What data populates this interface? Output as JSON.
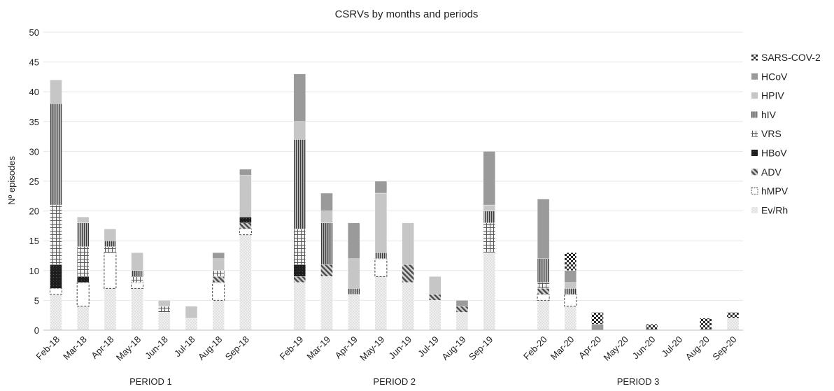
{
  "chart_data": {
    "type": "bar",
    "stacked": true,
    "title": "CSRVs by months and periods",
    "xlabel": "",
    "ylabel": "Nº episodes",
    "ylim": [
      0,
      50
    ],
    "yticks": [
      0,
      5,
      10,
      15,
      20,
      25,
      30,
      35,
      40,
      45,
      50
    ],
    "grid": true,
    "legend_position": "right",
    "periods": [
      {
        "label": "PERIOD 1",
        "categories": [
          "Feb-18",
          "Mar-18",
          "Apr-18",
          "May-18",
          "Jun-18",
          "Jul-18",
          "Aug-18",
          "Sep-18"
        ]
      },
      {
        "label": "PERIOD 2",
        "categories": [
          "Feb-19",
          "Mar-19",
          "Apr-19",
          "May-19",
          "Jun-19",
          "Jul-19",
          "Aug-19",
          "Sep-19"
        ]
      },
      {
        "label": "PERIOD 3",
        "categories": [
          "Feb-20",
          "Mar-20",
          "Apr-20",
          "May-20",
          "Jun-20",
          "Jul-20",
          "Aug-20",
          "Sep-20"
        ]
      }
    ],
    "categories": [
      "Feb-18",
      "Mar-18",
      "Apr-18",
      "May-18",
      "Jun-18",
      "Jul-18",
      "Aug-18",
      "Sep-18",
      "Feb-19",
      "Mar-19",
      "Apr-19",
      "May-19",
      "Jun-19",
      "Jul-19",
      "Aug-19",
      "Sep-19",
      "Feb-20",
      "Mar-20",
      "Apr-20",
      "May-20",
      "Jun-20",
      "Jul-20",
      "Aug-20",
      "Sep-20"
    ],
    "series": [
      {
        "name": "Ev/Rh",
        "pattern": "dots",
        "values": [
          6,
          4,
          7,
          7,
          3,
          2,
          5,
          16,
          8,
          9,
          6,
          9,
          8,
          5,
          3,
          13,
          5,
          4,
          0,
          0,
          0,
          0,
          0,
          2
        ]
      },
      {
        "name": "hMPV",
        "pattern": "dashed",
        "values": [
          1,
          4,
          6,
          1,
          0,
          0,
          3,
          1,
          0,
          0,
          0,
          3,
          0,
          0,
          0,
          0,
          1,
          2,
          0,
          0,
          0,
          0,
          0,
          0
        ]
      },
      {
        "name": "ADV",
        "pattern": "diag",
        "values": [
          0,
          0,
          0,
          0,
          0,
          0,
          1,
          1,
          1,
          2,
          0,
          0,
          3,
          1,
          1,
          0,
          1,
          0,
          0,
          0,
          0,
          0,
          0,
          0
        ]
      },
      {
        "name": "HBoV",
        "pattern": "dark",
        "values": [
          4,
          1,
          0,
          0,
          0,
          0,
          0,
          1,
          2,
          0,
          0,
          0,
          0,
          0,
          0,
          0,
          0,
          0,
          0,
          0,
          0,
          0,
          0,
          0
        ]
      },
      {
        "name": "VRS",
        "pattern": "grid",
        "values": [
          10,
          5,
          1,
          1,
          1,
          0,
          1,
          0,
          6,
          0,
          0,
          0,
          0,
          0,
          0,
          5,
          1,
          0,
          0,
          0,
          0,
          0,
          0,
          0
        ]
      },
      {
        "name": "hIV",
        "pattern": "vlines",
        "values": [
          17,
          4,
          1,
          1,
          0,
          0,
          0,
          0,
          15,
          7,
          1,
          1,
          0,
          0,
          0,
          2,
          4,
          1,
          0,
          0,
          0,
          0,
          0,
          0
        ]
      },
      {
        "name": "HPIV",
        "pattern": "light",
        "values": [
          4,
          1,
          2,
          3,
          1,
          2,
          2,
          7,
          3,
          2,
          5,
          10,
          7,
          3,
          0,
          1,
          0,
          1,
          0,
          0,
          0,
          0,
          0,
          0
        ]
      },
      {
        "name": "HCoV",
        "pattern": "mid",
        "values": [
          0,
          0,
          0,
          0,
          0,
          0,
          1,
          1,
          8,
          3,
          6,
          2,
          0,
          0,
          1,
          9,
          10,
          2,
          1,
          0,
          0,
          0,
          0,
          0
        ]
      },
      {
        "name": "SARS-COV-2",
        "pattern": "checker",
        "values": [
          0,
          0,
          0,
          0,
          0,
          0,
          0,
          0,
          0,
          0,
          0,
          0,
          0,
          0,
          0,
          0,
          0,
          3,
          2,
          0,
          1,
          0,
          2,
          1
        ]
      }
    ]
  }
}
